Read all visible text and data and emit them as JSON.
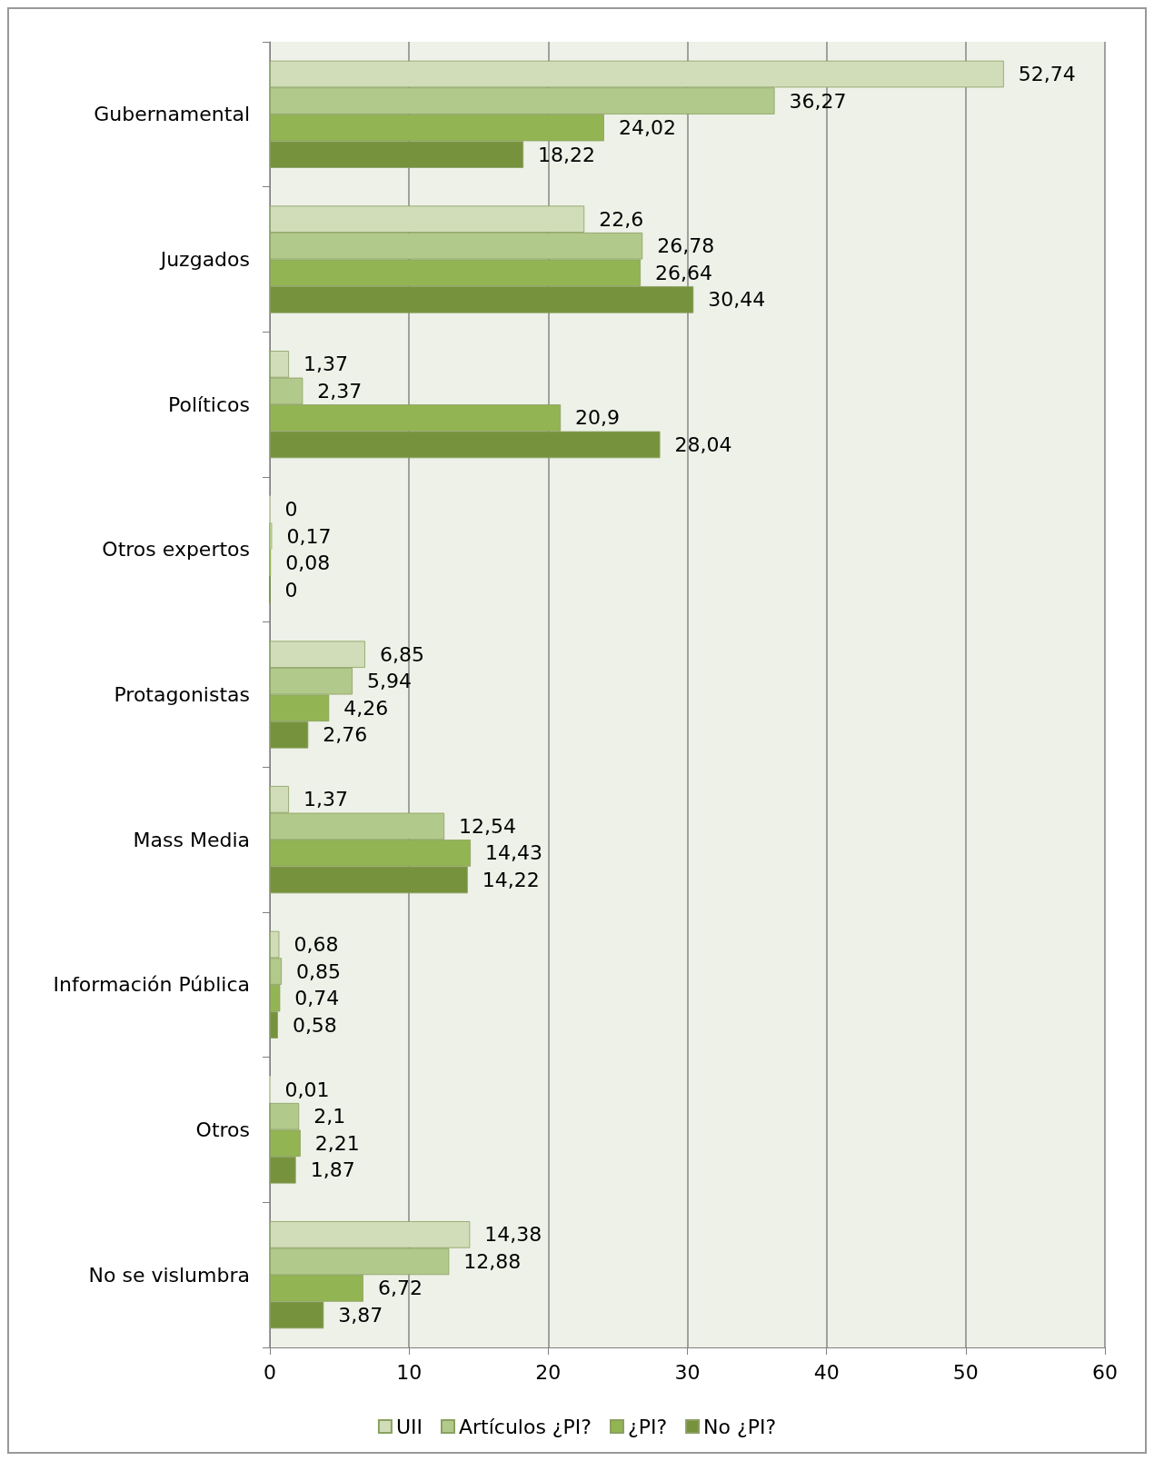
{
  "chart_data": {
    "type": "bar",
    "orientation": "horizontal",
    "categories": [
      "Gubernamental",
      "Juzgados",
      "Políticos",
      "Otros expertos",
      "Protagonistas",
      "Mass Media",
      "Información Pública",
      "Otros",
      "No se vislumbra"
    ],
    "series": [
      {
        "name": "UII",
        "color": "#d0ddb8",
        "values": [
          52.74,
          22.6,
          1.37,
          0,
          6.85,
          1.37,
          0.68,
          0.01,
          14.38
        ],
        "value_labels": [
          "52,74",
          "22,6",
          "1,37",
          "0",
          "6,85",
          "1,37",
          "0,68",
          "0,01",
          "14,38"
        ]
      },
      {
        "name": "Artículos ¿PI?",
        "color": "#b2c98c",
        "values": [
          36.27,
          26.78,
          2.37,
          0.17,
          5.94,
          12.54,
          0.85,
          2.1,
          12.88
        ],
        "value_labels": [
          "36,27",
          "26,78",
          "2,37",
          "0,17",
          "5,94",
          "12,54",
          "0,85",
          "2,1",
          "12,88"
        ]
      },
      {
        "name": "¿PI?",
        "color": "#93b453",
        "values": [
          24.02,
          26.64,
          20.9,
          0.08,
          4.26,
          14.43,
          0.74,
          2.21,
          6.72
        ],
        "value_labels": [
          "24,02",
          "26,64",
          "20,9",
          "0,08",
          "4,26",
          "14,43",
          "0,74",
          "2,21",
          "6,72"
        ]
      },
      {
        "name": "No ¿PI?",
        "color": "#77923d",
        "values": [
          18.22,
          30.44,
          28.04,
          0,
          2.76,
          14.22,
          0.58,
          1.87,
          3.87
        ],
        "value_labels": [
          "18,22",
          "30,44",
          "28,04",
          "0",
          "2,76",
          "14,22",
          "0,58",
          "1,87",
          "3,87"
        ]
      }
    ],
    "xlim": [
      0,
      60
    ],
    "xticks": [
      0,
      10,
      20,
      30,
      40,
      50,
      60
    ],
    "grid": "x",
    "legend": "bottom"
  }
}
